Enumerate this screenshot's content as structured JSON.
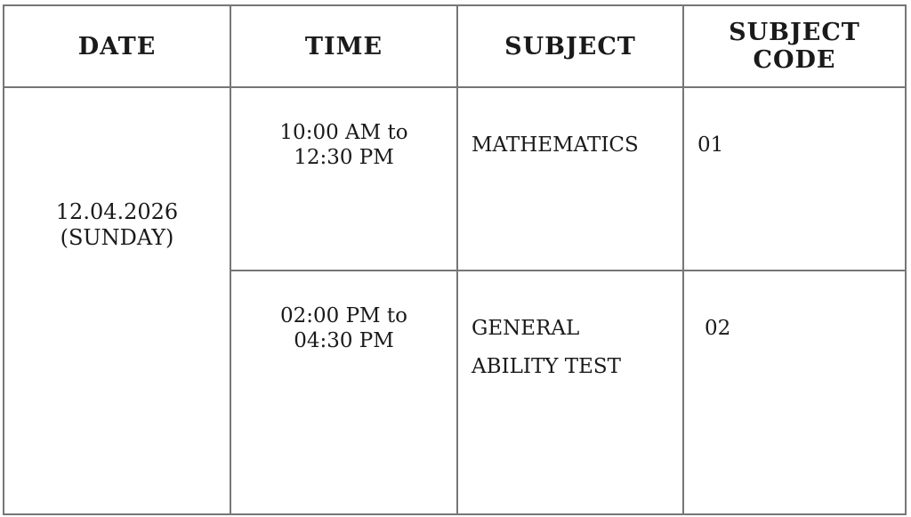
{
  "table": {
    "headers": [
      "DATE",
      "TIME",
      "SUBJECT",
      "SUBJECT CODE"
    ],
    "date": {
      "date_text": "12.04.2026",
      "day_text": "(SUNDAY)"
    },
    "sessions": [
      {
        "time": [
          "10:00 AM to",
          "12:30 PM"
        ],
        "subject": [
          "MATHEMATICS"
        ],
        "code": "01"
      },
      {
        "time": [
          "02:00 PM to",
          "04:30 PM"
        ],
        "subject": [
          "GENERAL",
          "ABILITY TEST"
        ],
        "code": "02"
      }
    ],
    "style": {
      "border_color": "#767676",
      "text_color": "#1a1a1a",
      "background_color": "#ffffff"
    }
  }
}
